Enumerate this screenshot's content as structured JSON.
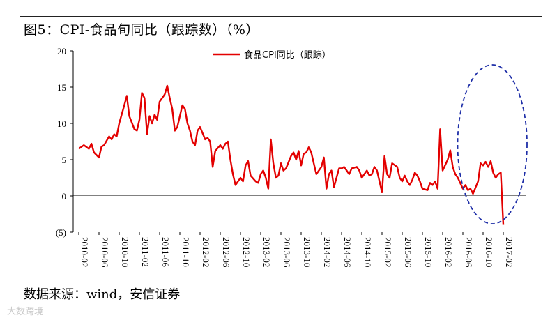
{
  "header": {
    "title": "图5：CPI-食品旬同比（跟踪数）（%）"
  },
  "footer": {
    "source": "数据来源：wind，安信证券",
    "watermark": "大数跨境"
  },
  "chart_data": {
    "type": "line",
    "title": "图5：CPI-食品旬同比（跟踪数）（%）",
    "xlabel": "",
    "ylabel": "",
    "legend": {
      "position": "top-center",
      "entries": [
        "食品CPI同比（跟踪）"
      ]
    },
    "grid": false,
    "ylim": [
      -5,
      20
    ],
    "yticks": [
      20,
      15,
      10,
      5,
      0,
      -5
    ],
    "ytick_labels": [
      "20",
      "15",
      "10",
      "5",
      "0",
      "(5)"
    ],
    "xticks": [
      "2010-02",
      "2010-06",
      "2010-10",
      "2011-02",
      "2011-06",
      "2011-10",
      "2012-02",
      "2012-06",
      "2012-10",
      "2013-02",
      "2013-06",
      "2013-10",
      "2014-02",
      "2014-06",
      "2014-10",
      "2015-02",
      "2015-06",
      "2015-10",
      "2016-02",
      "2016-06",
      "2016-10",
      "2017-02"
    ],
    "series": [
      {
        "name": "食品CPI同比（跟踪）",
        "color": "#e30000",
        "points": [
          [
            "2010-02",
            6.5
          ],
          [
            "2010-03",
            7.0
          ],
          [
            "2010-04",
            6.5
          ],
          [
            "2010-04",
            7.2
          ],
          [
            "2010-05",
            6.0
          ],
          [
            "2010-06",
            5.3
          ],
          [
            "2010-06",
            6.8
          ],
          [
            "2010-07",
            7.0
          ],
          [
            "2010-08",
            8.2
          ],
          [
            "2010-08",
            7.8
          ],
          [
            "2010-09",
            8.5
          ],
          [
            "2010-09",
            8.2
          ],
          [
            "2010-10",
            10.0
          ],
          [
            "2010-11",
            12.5
          ],
          [
            "2010-11",
            13.8
          ],
          [
            "2010-12",
            11.0
          ],
          [
            "2011-01",
            9.2
          ],
          [
            "2011-01",
            9.0
          ],
          [
            "2011-02",
            10.5
          ],
          [
            "2011-02",
            14.2
          ],
          [
            "2011-03",
            13.5
          ],
          [
            "2011-03",
            8.5
          ],
          [
            "2011-04",
            11.0
          ],
          [
            "2011-04",
            10.0
          ],
          [
            "2011-05",
            11.2
          ],
          [
            "2011-05",
            10.5
          ],
          [
            "2011-06",
            13.0
          ],
          [
            "2011-07",
            14.0
          ],
          [
            "2011-07",
            15.2
          ],
          [
            "2011-08",
            13.5
          ],
          [
            "2011-08",
            12.0
          ],
          [
            "2011-09",
            9.0
          ],
          [
            "2011-09",
            9.5
          ],
          [
            "2011-10",
            11.0
          ],
          [
            "2011-10",
            12.5
          ],
          [
            "2011-11",
            12.0
          ],
          [
            "2011-11",
            10.0
          ],
          [
            "2011-12",
            9.0
          ],
          [
            "2011-12",
            7.5
          ],
          [
            "2012-01",
            7.0
          ],
          [
            "2012-01",
            9.0
          ],
          [
            "2012-02",
            9.5
          ],
          [
            "2012-03",
            7.8
          ],
          [
            "2012-03",
            8.0
          ],
          [
            "2012-04",
            7.5
          ],
          [
            "2012-04",
            4.0
          ],
          [
            "2012-05",
            6.2
          ],
          [
            "2012-06",
            7.0
          ],
          [
            "2012-06",
            6.5
          ],
          [
            "2012-07",
            7.2
          ],
          [
            "2012-07",
            7.5
          ],
          [
            "2012-08",
            5.0
          ],
          [
            "2012-08",
            3.0
          ],
          [
            "2012-09",
            1.5
          ],
          [
            "2012-10",
            2.5
          ],
          [
            "2012-10",
            2.0
          ],
          [
            "2012-11",
            4.2
          ],
          [
            "2012-11",
            4.8
          ],
          [
            "2012-12",
            2.8
          ],
          [
            "2013-01",
            2.0
          ],
          [
            "2013-01",
            1.8
          ],
          [
            "2013-02",
            3.0
          ],
          [
            "2013-02",
            3.5
          ],
          [
            "2013-03",
            2.5
          ],
          [
            "2013-03",
            1.0
          ],
          [
            "2013-04",
            7.8
          ],
          [
            "2013-04",
            4.5
          ],
          [
            "2013-05",
            2.5
          ],
          [
            "2013-05",
            2.8
          ],
          [
            "2013-06",
            4.5
          ],
          [
            "2013-06",
            3.5
          ],
          [
            "2013-07",
            3.8
          ],
          [
            "2013-08",
            5.5
          ],
          [
            "2013-08",
            6.0
          ],
          [
            "2013-09",
            5.0
          ],
          [
            "2013-09",
            6.2
          ],
          [
            "2013-10",
            4.2
          ],
          [
            "2013-10",
            5.8
          ],
          [
            "2013-11",
            6.0
          ],
          [
            "2013-11",
            6.7
          ],
          [
            "2013-12",
            6.0
          ],
          [
            "2013-12",
            4.5
          ],
          [
            "2014-01",
            3.0
          ],
          [
            "2014-01",
            3.5
          ],
          [
            "2014-02",
            4.0
          ],
          [
            "2014-02",
            5.3
          ],
          [
            "2014-03",
            1.0
          ],
          [
            "2014-03",
            3.0
          ],
          [
            "2014-04",
            3.5
          ],
          [
            "2014-04",
            1.2
          ],
          [
            "2014-05",
            2.5
          ],
          [
            "2014-05",
            3.8
          ],
          [
            "2014-06",
            3.8
          ],
          [
            "2014-06",
            4.0
          ],
          [
            "2014-07",
            3.5
          ],
          [
            "2014-07",
            3.0
          ],
          [
            "2014-08",
            3.8
          ],
          [
            "2014-09",
            4.0
          ],
          [
            "2014-09",
            3.5
          ],
          [
            "2014-10",
            2.5
          ],
          [
            "2014-10",
            3.0
          ],
          [
            "2014-11",
            3.5
          ],
          [
            "2014-11",
            2.8
          ],
          [
            "2014-12",
            3.0
          ],
          [
            "2014-12",
            4.0
          ],
          [
            "2015-01",
            3.5
          ],
          [
            "2015-01",
            2.0
          ],
          [
            "2015-02",
            0.5
          ],
          [
            "2015-02",
            5.5
          ],
          [
            "2015-03",
            3.0
          ],
          [
            "2015-03",
            2.5
          ],
          [
            "2015-04",
            4.5
          ],
          [
            "2015-05",
            4.0
          ],
          [
            "2015-05",
            2.5
          ],
          [
            "2015-06",
            2.0
          ],
          [
            "2015-06",
            2.8
          ],
          [
            "2015-07",
            2.0
          ],
          [
            "2015-07",
            1.5
          ],
          [
            "2015-08",
            2.2
          ],
          [
            "2015-08",
            3.2
          ],
          [
            "2015-09",
            2.8
          ],
          [
            "2015-09",
            2.0
          ],
          [
            "2015-10",
            1.0
          ],
          [
            "2015-11",
            0.8
          ],
          [
            "2015-11",
            1.8
          ],
          [
            "2015-12",
            1.5
          ],
          [
            "2015-12",
            2.0
          ],
          [
            "2016-01",
            1.0
          ],
          [
            "2016-01",
            9.2
          ],
          [
            "2016-02",
            3.5
          ],
          [
            "2016-03",
            5.0
          ],
          [
            "2016-03",
            6.3
          ],
          [
            "2016-04",
            4.0
          ],
          [
            "2016-04",
            3.0
          ],
          [
            "2016-05",
            2.5
          ],
          [
            "2016-06",
            1.0
          ],
          [
            "2016-06",
            1.5
          ],
          [
            "2016-07",
            0.8
          ],
          [
            "2016-07",
            1.0
          ],
          [
            "2016-08",
            0.3
          ],
          [
            "2016-09",
            2.0
          ],
          [
            "2016-09",
            4.5
          ],
          [
            "2016-10",
            4.2
          ],
          [
            "2016-10",
            4.7
          ],
          [
            "2016-11",
            4.0
          ],
          [
            "2016-11",
            4.8
          ],
          [
            "2016-12",
            3.2
          ],
          [
            "2016-12",
            2.5
          ],
          [
            "2017-01",
            3.0
          ],
          [
            "2017-01",
            3.2
          ],
          [
            "2017-02",
            -4.0
          ]
        ]
      }
    ],
    "annotations": [
      {
        "type": "ellipse",
        "style": "dashed",
        "color": "#1f2fa8",
        "around": [
          "2016-08",
          "2017-02"
        ]
      }
    ]
  }
}
